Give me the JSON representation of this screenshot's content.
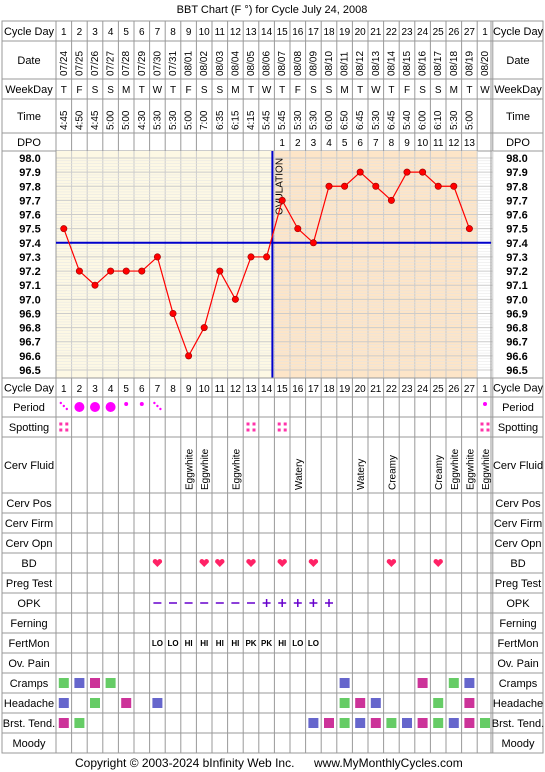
{
  "title": "BBT Chart (F °) for Cycle July 24, 2008",
  "copyright": "Copyright © 2003-2024 bInfinity Web Inc.",
  "website": "www.MyMonthlyCycles.com",
  "ovulation_label": "OVULATION",
  "ovulation_day": 14,
  "coverline": 97.4,
  "row_labels": {
    "cycle_day": "Cycle Day",
    "date": "Date",
    "weekday": "WeekDay",
    "time": "Time",
    "dpo": "DPO",
    "period": "Period",
    "spotting": "Spotting",
    "cerv_fluid": "Cerv Fluid",
    "cerv_pos": "Cerv Pos",
    "cerv_firm": "Cerv Firm",
    "cerv_opn": "Cerv Opn",
    "bd": "BD",
    "preg_test": "Preg Test",
    "opk": "OPK",
    "ferning": "Ferning",
    "fertmon": "FertMon",
    "ov_pain": "Ov. Pain",
    "cramps": "Cramps",
    "headache": "Headache",
    "brst_tend": "Brst. Tend.",
    "moody": "Moody"
  },
  "columns": {
    "cycle_days": [
      "1",
      "2",
      "3",
      "4",
      "5",
      "6",
      "7",
      "8",
      "9",
      "10",
      "11",
      "12",
      "13",
      "14",
      "15",
      "16",
      "17",
      "18",
      "19",
      "20",
      "21",
      "22",
      "23",
      "24",
      "25",
      "26",
      "27",
      "1"
    ],
    "dates": [
      "07/24",
      "07/25",
      "07/26",
      "07/27",
      "07/28",
      "07/29",
      "07/30",
      "07/31",
      "08/01",
      "08/02",
      "08/03",
      "08/04",
      "08/05",
      "08/06",
      "08/07",
      "08/08",
      "08/09",
      "08/10",
      "08/11",
      "08/12",
      "08/13",
      "08/14",
      "08/15",
      "08/16",
      "08/17",
      "08/18",
      "08/19",
      "08/20"
    ],
    "weekdays": [
      "T",
      "F",
      "S",
      "S",
      "M",
      "T",
      "W",
      "T",
      "F",
      "S",
      "S",
      "M",
      "T",
      "W",
      "T",
      "F",
      "S",
      "S",
      "M",
      "T",
      "W",
      "T",
      "F",
      "S",
      "S",
      "M",
      "T",
      "W"
    ],
    "times": [
      "4:45",
      "4:50",
      "4:45",
      "5:00",
      "5:00",
      "4:30",
      "5:30",
      "5:30",
      "5:00",
      "7:00",
      "6:35",
      "6:15",
      "4:15",
      "5:45",
      "5:45",
      "5:30",
      "5:30",
      "6:00",
      "6:50",
      "6:45",
      "5:30",
      "6:45",
      "5:40",
      "6:00",
      "6:10",
      "5:30",
      "5:00",
      ""
    ],
    "dpo": [
      "",
      "",
      "",
      "",
      "",
      "",
      "",
      "",
      "",
      "",
      "",
      "",
      "",
      "",
      "1",
      "2",
      "3",
      "4",
      "5",
      "6",
      "7",
      "8",
      "9",
      "10",
      "11",
      "12",
      "13",
      ""
    ]
  },
  "temp_axis_labels": [
    "98.0",
    "97.9",
    "97.8",
    "97.7",
    "97.6",
    "97.5",
    "97.4",
    "97.3",
    "97.2",
    "97.1",
    "97.0",
    "96.9",
    "96.8",
    "96.7",
    "96.6",
    "96.5"
  ],
  "chart_data": {
    "type": "line",
    "title": "BBT Chart (F °) for Cycle July 24, 2008",
    "xlabel": "Cycle Day",
    "ylabel": "",
    "ylim": [
      96.5,
      98.0
    ],
    "x": [
      1,
      2,
      3,
      4,
      5,
      6,
      7,
      8,
      9,
      10,
      11,
      12,
      13,
      14,
      15,
      16,
      17,
      18,
      19,
      20,
      21,
      22,
      23,
      24,
      25,
      26,
      27
    ],
    "values": [
      97.5,
      97.2,
      97.1,
      97.2,
      97.2,
      97.2,
      97.3,
      96.9,
      96.6,
      96.8,
      97.2,
      97.0,
      97.3,
      97.3,
      97.7,
      97.5,
      97.4,
      97.8,
      97.8,
      97.9,
      97.8,
      97.7,
      97.9,
      97.9,
      97.8,
      97.8,
      97.5
    ],
    "grid": true,
    "colors": {
      "line": "#ff0000",
      "point": "#ff0000",
      "coverline": "#0000cc",
      "ovulation": "#0000cc",
      "pre_ov_bg": "#fdf8e4",
      "post_ov_bg": "#fde5c8"
    }
  },
  "period": [
    "dots",
    "big",
    "big",
    "big",
    "small",
    "small",
    "dots",
    "",
    "",
    "",
    "",
    "",
    "",
    "",
    "",
    "",
    "",
    "",
    "",
    "",
    "",
    "",
    "",
    "",
    "",
    "",
    "",
    "small"
  ],
  "spotting_days": [
    1,
    13,
    15,
    28
  ],
  "cerv_fluid": [
    "",
    "",
    "",
    "",
    "",
    "",
    "",
    "",
    "Eggwhite",
    "Eggwhite",
    "",
    "Eggwhite",
    "",
    "",
    "",
    "Watery",
    "",
    "",
    "",
    "Watery",
    "",
    "Creamy",
    "",
    "",
    "Creamy",
    "Eggwhite",
    "Eggwhite",
    "Eggwhite"
  ],
  "bd_days": [
    7,
    10,
    11,
    13,
    15,
    17,
    22,
    25
  ],
  "opk": [
    "",
    "",
    "",
    "",
    "",
    "",
    "neg",
    "neg",
    "neg",
    "neg",
    "neg",
    "neg",
    "neg",
    "pos",
    "pos",
    "pos",
    "pos",
    "pos",
    "",
    "",
    "",
    "",
    "",
    "",
    "",
    "",
    "",
    ""
  ],
  "fertmon": [
    "",
    "",
    "",
    "",
    "",
    "",
    "LO",
    "LO",
    "HI",
    "HI",
    "HI",
    "HI",
    "PK",
    "PK",
    "HI",
    "LO",
    "LO",
    "",
    "",
    "",
    "",
    "",
    "",
    "",
    "",
    "",
    "",
    ""
  ],
  "cramps_days": [
    1,
    2,
    3,
    4,
    19,
    24,
    26,
    27
  ],
  "headache_days": [
    1,
    3,
    5,
    7,
    19,
    20,
    21,
    25,
    27
  ],
  "brst_tend_days": [
    1,
    2,
    17,
    18,
    19,
    20,
    21,
    22,
    23,
    24,
    25,
    26,
    27,
    28
  ],
  "symptom_colors": {
    "cramps": [
      "#66cc66",
      "#6666cc",
      "#cc3399"
    ],
    "headache": [
      "#6666cc",
      "#66cc66",
      "#cc3399"
    ],
    "brst_tend": [
      "#cc3399",
      "#66cc66",
      "#6666cc"
    ]
  }
}
